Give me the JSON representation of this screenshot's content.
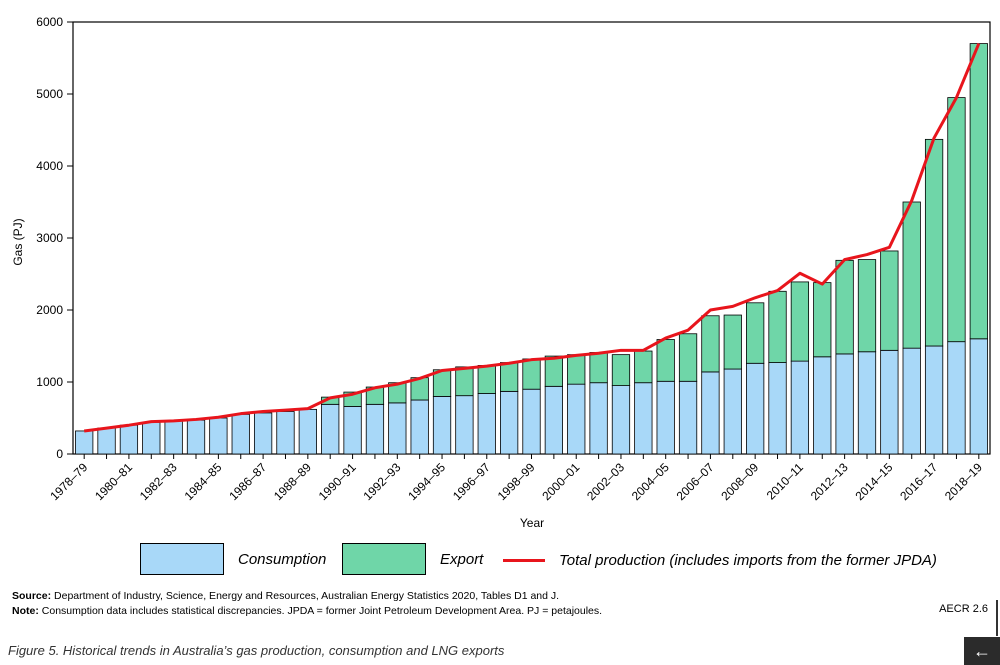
{
  "chart_data": {
    "type": "bar",
    "stacked": true,
    "xlabel": "Year",
    "ylabel": "Gas (PJ)",
    "ylim": [
      0,
      6000
    ],
    "yticks": [
      0,
      1000,
      2000,
      3000,
      4000,
      5000,
      6000
    ],
    "categories": [
      "1978–79",
      "1979–80",
      "1980–81",
      "1981–82",
      "1982–83",
      "1983–84",
      "1984–85",
      "1985–86",
      "1986–87",
      "1987–88",
      "1988–89",
      "1989–90",
      "1990–91",
      "1991–92",
      "1992–93",
      "1993–94",
      "1994–95",
      "1995–96",
      "1996–97",
      "1997–98",
      "1998–99",
      "1999–00",
      "2000–01",
      "2001–02",
      "2002–03",
      "2003–04",
      "2004–05",
      "2005–06",
      "2006–07",
      "2007–08",
      "2008–09",
      "2009–10",
      "2010–11",
      "2011–12",
      "2012–13",
      "2013–14",
      "2014–15",
      "2015–16",
      "2016–17",
      "2017–18",
      "2018–19"
    ],
    "tick_labels": [
      "1978–79",
      "1980–81",
      "1982–83",
      "1984–85",
      "1986–87",
      "1988–89",
      "1990–91",
      "1992–93",
      "1994–95",
      "1996–97",
      "1998–99",
      "2000–01",
      "2002–03",
      "2004–05",
      "2006–07",
      "2008–09",
      "2010–11",
      "2012–13",
      "2014–15",
      "2016–17",
      "2018–19"
    ],
    "series": [
      {
        "name": "Consumption",
        "color": "#a8d8f8",
        "values": [
          320,
          360,
          400,
          440,
          460,
          470,
          500,
          550,
          570,
          590,
          620,
          690,
          660,
          690,
          710,
          750,
          800,
          810,
          840,
          870,
          900,
          940,
          970,
          990,
          950,
          990,
          1010,
          1010,
          1140,
          1180,
          1260,
          1270,
          1290,
          1350,
          1390,
          1420,
          1440,
          1470,
          1500,
          1560,
          1600
        ]
      },
      {
        "name": "Export",
        "color": "#6fd6a8",
        "values": [
          0,
          0,
          0,
          0,
          0,
          0,
          0,
          0,
          0,
          0,
          0,
          100,
          200,
          240,
          280,
          310,
          370,
          400,
          390,
          400,
          420,
          420,
          410,
          420,
          430,
          440,
          580,
          660,
          780,
          750,
          840,
          990,
          1100,
          1030,
          1300,
          1280,
          1380,
          2030,
          2870,
          3390,
          4100
        ]
      },
      {
        "name": "Total production (includes imports from the former JPDA)",
        "color": "#e8151c",
        "type": "line",
        "values": [
          320,
          360,
          400,
          450,
          460,
          480,
          510,
          560,
          590,
          610,
          630,
          780,
          830,
          920,
          970,
          1050,
          1160,
          1190,
          1220,
          1260,
          1310,
          1330,
          1370,
          1400,
          1440,
          1440,
          1610,
          1720,
          2000,
          2050,
          2170,
          2270,
          2510,
          2360,
          2700,
          2770,
          2870,
          3520,
          4390,
          4950,
          5700
        ]
      }
    ]
  },
  "legend": {
    "consumption": "Consumption",
    "export": "Export",
    "total": "Total production (includes imports from the former JPDA)"
  },
  "notes": {
    "source_label": "Source:",
    "source_text": "Department of Industry, Science, Energy and Resources, Australian Energy Statistics 2020, Tables D1 and J.",
    "note_label": "Note:",
    "note_text": "Consumption data includes statistical discrepancies. JPDA = former Joint Petroleum Development Area.  PJ = petajoules.",
    "ref": "AECR 2.6"
  },
  "caption": "Figure 5. Historical trends in Australia’s gas production, consumption and LNG exports",
  "nav": {
    "back_icon": "←"
  },
  "colors": {
    "consumption": "#a8d8f8",
    "export": "#6fd6a8",
    "line": "#e8151c"
  }
}
